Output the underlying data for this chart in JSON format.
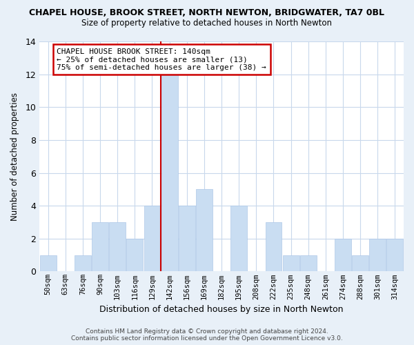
{
  "title": "CHAPEL HOUSE, BROOK STREET, NORTH NEWTON, BRIDGWATER, TA7 0BL",
  "subtitle": "Size of property relative to detached houses in North Newton",
  "xlabel": "Distribution of detached houses by size in North Newton",
  "ylabel": "Number of detached properties",
  "bin_labels": [
    "50sqm",
    "63sqm",
    "76sqm",
    "90sqm",
    "103sqm",
    "116sqm",
    "129sqm",
    "142sqm",
    "156sqm",
    "169sqm",
    "182sqm",
    "195sqm",
    "208sqm",
    "222sqm",
    "235sqm",
    "248sqm",
    "261sqm",
    "274sqm",
    "288sqm",
    "301sqm",
    "314sqm"
  ],
  "bar_values": [
    1,
    0,
    1,
    3,
    3,
    2,
    4,
    12,
    4,
    5,
    0,
    4,
    0,
    3,
    1,
    1,
    0,
    2,
    1,
    2,
    2
  ],
  "bar_color": "#c9ddf2",
  "bar_edgecolor": "#aec8e8",
  "highlight_bin": 7,
  "highlight_line_color": "#cc0000",
  "ylim": [
    0,
    14
  ],
  "yticks": [
    0,
    2,
    4,
    6,
    8,
    10,
    12,
    14
  ],
  "annotation_title": "CHAPEL HOUSE BROOK STREET: 140sqm",
  "annotation_line1": "← 25% of detached houses are smaller (13)",
  "annotation_line2": "75% of semi-detached houses are larger (38) →",
  "footer1": "Contains HM Land Registry data © Crown copyright and database right 2024.",
  "footer2": "Contains public sector information licensed under the Open Government Licence v3.0.",
  "bg_color": "#e8f0f8",
  "plot_bg_color": "#ffffff",
  "grid_color": "#c8d8ec",
  "annotation_box_color": "#ffffff",
  "annotation_border_color": "#cc0000"
}
